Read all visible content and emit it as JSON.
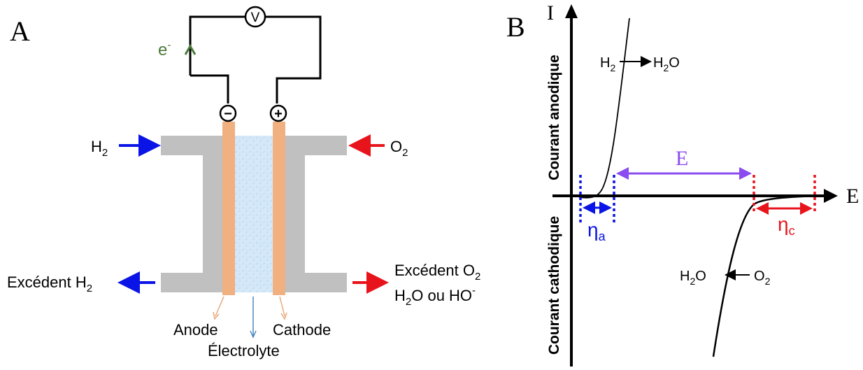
{
  "panel_a": {
    "label": "A",
    "voltmeter": "V",
    "electron": "e",
    "electron_sup": "-",
    "minus_terminal": "−",
    "plus_terminal": "+",
    "h2_in": {
      "main": "H",
      "sub": "2"
    },
    "o2_in": {
      "main": "O",
      "sub": "2"
    },
    "excess_h2": {
      "main": "Excédent H",
      "sub": "2"
    },
    "excess_o2": {
      "main": "Excédent O",
      "sub": "2"
    },
    "products": {
      "a": "H",
      "sub": "2",
      "b": "O ou HO",
      "sup": "-"
    },
    "anode": "Anode",
    "cathode": "Cathode",
    "electrolyte": "Électrolyte"
  },
  "panel_b": {
    "label": "B",
    "y_axis": "I",
    "x_axis": "E",
    "anodic_current": "Courant anodique",
    "cathodic_current": "Courant cathodique",
    "anodic_reaction": {
      "a": "H",
      "sub": "2",
      "b": "H",
      "sub2": "2",
      "c": "O"
    },
    "cathodic_reaction": {
      "a": "H",
      "sub": "2",
      "b": "O",
      "c": "O",
      "sub2": "2"
    },
    "cell_voltage": "E",
    "eta_a": {
      "main": "η",
      "sub": "a"
    },
    "eta_c": {
      "main": "η",
      "sub": "c"
    }
  },
  "colors": {
    "blue": "#0a14e6",
    "red": "#e8141c",
    "purple": "#8a4cf0",
    "gray": "#c0c0c0",
    "electrode": "#f0b080",
    "electrolyte": "#cfe6f8",
    "green": "#4a7a3a",
    "thin_arrow_blue": "#4a88c0",
    "thin_arrow_orange": "#e8a878"
  }
}
